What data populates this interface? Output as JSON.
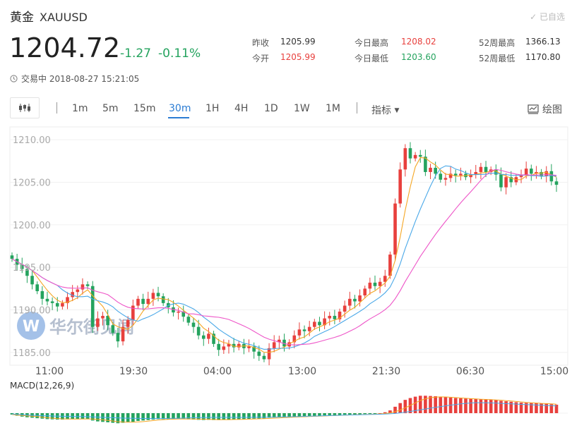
{
  "header": {
    "name": "黄金",
    "symbol": "XAUUSD",
    "added_label": "已自选",
    "price": "1204.72",
    "change": "-1.27",
    "change_pct": "-0.11%",
    "status": "交易中 2018-08-27 15:21:05"
  },
  "stats": [
    {
      "label": "昨收",
      "value": "1205.99",
      "color": "#333333"
    },
    {
      "label": "今开",
      "value": "1205.99",
      "color": "#e8403d"
    },
    {
      "label": "今日最高",
      "value": "1208.02",
      "color": "#e8403d"
    },
    {
      "label": "今日最低",
      "value": "1203.60",
      "color": "#24a35e"
    },
    {
      "label": "52周最高",
      "value": "1366.13",
      "color": "#333333"
    },
    {
      "label": "52周最低",
      "value": "1170.80",
      "color": "#333333"
    }
  ],
  "toolbar": {
    "timeframes": [
      "1m",
      "5m",
      "15m",
      "30m",
      "1H",
      "4H",
      "1D",
      "1W",
      "1M"
    ],
    "active_timeframe": "30m",
    "indicator_label": "指标",
    "draw_label": "绘图",
    "chart_type_icon": "candlestick-icon"
  },
  "watermark": "华尔街见闻",
  "chart_data": {
    "type": "candlestick",
    "y_ticks": [
      "1210.00",
      "1205.00",
      "1200.00",
      "1195.00",
      "1190.00",
      "1185.00"
    ],
    "ylim": [
      1183.5,
      1211.5
    ],
    "x_ticks": [
      "11:00",
      "19:30",
      "04:00",
      "13:00",
      "21:30",
      "06:30",
      "15:00"
    ],
    "up_color": "#e8403d",
    "down_color": "#24a35e",
    "closes": [
      1196.0,
      1195.3,
      1194.8,
      1194.0,
      1193.0,
      1192.2,
      1191.3,
      1191.0,
      1190.8,
      1190.4,
      1190.8,
      1191.5,
      1192.1,
      1192.4,
      1193.0,
      1192.8,
      1188.0,
      1189.0,
      1189.3,
      1188.2,
      1187.3,
      1186.3,
      1188.0,
      1188.8,
      1190.5,
      1191.3,
      1190.7,
      1191.3,
      1192.0,
      1191.6,
      1190.8,
      1190.3,
      1189.7,
      1189.8,
      1189.2,
      1188.5,
      1188.0,
      1187.0,
      1186.6,
      1187.2,
      1186.0,
      1185.3,
      1185.7,
      1186.0,
      1185.6,
      1186.0,
      1185.5,
      1185.7,
      1185.1,
      1184.6,
      1184.2,
      1185.5,
      1186.2,
      1186.5,
      1185.7,
      1186.2,
      1187.0,
      1187.7,
      1187.5,
      1188.0,
      1188.6,
      1188.2,
      1189.0,
      1189.3,
      1188.9,
      1189.8,
      1190.5,
      1191.3,
      1191.0,
      1191.7,
      1192.5,
      1193.2,
      1192.8,
      1193.3,
      1194.0,
      1196.5,
      1202.5,
      1206.5,
      1209.0,
      1207.8,
      1208.2,
      1208.0,
      1206.2,
      1206.7,
      1206.0,
      1205.3,
      1205.5,
      1206.0,
      1205.8,
      1206.0,
      1205.6,
      1205.9,
      1206.2,
      1206.8,
      1206.2,
      1206.5,
      1205.9,
      1204.4,
      1205.6,
      1205.0,
      1205.6,
      1205.9,
      1206.6,
      1206.0,
      1206.2,
      1205.7,
      1206.3,
      1205.1,
      1204.7
    ],
    "macd_label": "MACD(12,26,9)",
    "macd_hist": [
      -0.3,
      -0.55,
      -0.75,
      -0.9,
      -1.0,
      -1.1,
      -1.2,
      -1.3,
      -1.35,
      -1.4,
      -1.4,
      -1.35,
      -1.3,
      -1.3,
      -1.25,
      -1.3,
      -1.6,
      -1.8,
      -1.9,
      -2.0,
      -2.1,
      -2.2,
      -2.1,
      -2.0,
      -1.9,
      -1.7,
      -1.6,
      -1.5,
      -1.4,
      -1.3,
      -1.3,
      -1.3,
      -1.35,
      -1.3,
      -1.3,
      -1.35,
      -1.4,
      -1.45,
      -1.5,
      -1.45,
      -1.5,
      -1.5,
      -1.45,
      -1.4,
      -1.4,
      -1.35,
      -1.3,
      -1.25,
      -1.2,
      -1.2,
      -1.15,
      -1.0,
      -0.95,
      -0.9,
      -0.9,
      -0.85,
      -0.8,
      -0.75,
      -0.7,
      -0.65,
      -0.6,
      -0.6,
      -0.5,
      -0.45,
      -0.45,
      -0.4,
      -0.35,
      -0.3,
      -0.3,
      -0.25,
      -0.2,
      -0.15,
      -0.1,
      0.0,
      0.2,
      0.6,
      1.4,
      2.2,
      2.9,
      3.3,
      3.6,
      3.8,
      3.8,
      3.75,
      3.7,
      3.6,
      3.5,
      3.4,
      3.3,
      3.25,
      3.2,
      3.15,
      3.1,
      3.05,
      3.0,
      2.95,
      2.85,
      2.7,
      2.6,
      2.5,
      2.4,
      2.3,
      2.25,
      2.2,
      2.15,
      2.1,
      2.05,
      1.95,
      1.85
    ]
  }
}
